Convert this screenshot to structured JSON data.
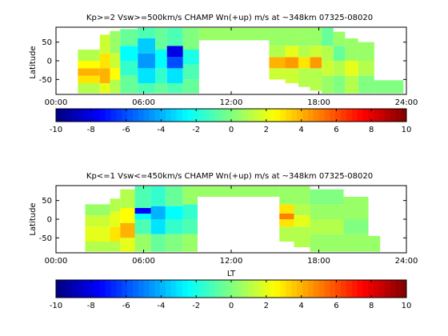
{
  "xticks": [
    "00:00",
    "06:00",
    "12:00",
    "18:00",
    "24:00"
  ],
  "cbar_ticks": [
    "-10",
    "-8",
    "-6",
    "-4",
    "-2",
    "0",
    "2",
    "4",
    "6",
    "8",
    "10"
  ],
  "chart_data": [
    {
      "type": "heatmap",
      "title": "Kp>=2 Vsw>=500km/s CHAMP Wn(+up) m/s at ~348km 07325-08020",
      "xlabel": "",
      "ylabel": "Latitude",
      "xlim": [
        0,
        24
      ],
      "ylim": [
        -90,
        90
      ],
      "yticks": [
        "-50",
        "0",
        "50"
      ],
      "colorbar": {
        "min": -10,
        "max": 10,
        "colormap": "jet"
      },
      "columns": [
        {
          "t0": 1.5,
          "t1": 3.0,
          "lat_min": -87,
          "lat_max": 30,
          "segments": [
            [
              -87,
              -60,
              1.0
            ],
            [
              -60,
              -40,
              3.0
            ],
            [
              -40,
              -20,
              4.0
            ],
            [
              -20,
              0,
              2.5
            ],
            [
              0,
              30,
              1.0
            ]
          ]
        },
        {
          "t0": 3.0,
          "t1": 3.7,
          "lat_min": -87,
          "lat_max": 70,
          "segments": [
            [
              -87,
              -60,
              2.0
            ],
            [
              -60,
              -20,
              4.0
            ],
            [
              -20,
              20,
              3.0
            ],
            [
              20,
              70,
              1.5
            ]
          ]
        },
        {
          "t0": 3.7,
          "t1": 4.4,
          "lat_min": -87,
          "lat_max": 80,
          "segments": [
            [
              -87,
              -50,
              1.0
            ],
            [
              -50,
              -20,
              2.5
            ],
            [
              -20,
              20,
              1.5
            ],
            [
              20,
              80,
              0.5
            ]
          ]
        },
        {
          "t0": 4.4,
          "t1": 5.6,
          "lat_min": -87,
          "lat_max": 85,
          "segments": [
            [
              -87,
              -40,
              -0.5
            ],
            [
              -40,
              0,
              -1.5
            ],
            [
              0,
              40,
              -2.5
            ],
            [
              40,
              85,
              -0.5
            ]
          ]
        },
        {
          "t0": 5.6,
          "t1": 6.8,
          "lat_min": -87,
          "lat_max": 88,
          "segments": [
            [
              -87,
              -60,
              -1.0
            ],
            [
              -60,
              -20,
              -3.0
            ],
            [
              -20,
              20,
              -4.5
            ],
            [
              20,
              60,
              -3.5
            ],
            [
              60,
              88,
              -1.0
            ]
          ]
        },
        {
          "t0": 6.8,
          "t1": 7.6,
          "lat_min": -87,
          "lat_max": 88,
          "segments": [
            [
              -87,
              -60,
              -0.5
            ],
            [
              -60,
              -20,
              -1.5
            ],
            [
              -20,
              30,
              -2.5
            ],
            [
              30,
              88,
              -0.5
            ]
          ]
        },
        {
          "t0": 7.6,
          "t1": 8.7,
          "lat_min": -87,
          "lat_max": 88,
          "segments": [
            [
              -87,
              -60,
              -1.0
            ],
            [
              -60,
              -20,
              -3.0
            ],
            [
              -20,
              10,
              -6.0
            ],
            [
              10,
              40,
              -8.0
            ],
            [
              40,
              88,
              -1.0
            ]
          ]
        },
        {
          "t0": 8.7,
          "t1": 9.8,
          "lat_min": -87,
          "lat_max": 88,
          "segments": [
            [
              -87,
              -50,
              -0.5
            ],
            [
              -50,
              -10,
              -1.0
            ],
            [
              -10,
              30,
              -2.0
            ],
            [
              30,
              88,
              0.0
            ]
          ]
        },
        {
          "t0": 9.8,
          "t1": 14.6,
          "lat_min": 55,
          "lat_max": 88,
          "segments": [
            [
              55,
              88,
              0.5
            ]
          ]
        },
        {
          "t0": 14.6,
          "t1": 15.7,
          "lat_min": -50,
          "lat_max": 88,
          "segments": [
            [
              -50,
              -20,
              1.5
            ],
            [
              -20,
              10,
              4.0
            ],
            [
              10,
              40,
              1.0
            ],
            [
              40,
              88,
              0.5
            ]
          ]
        },
        {
          "t0": 15.7,
          "t1": 16.6,
          "lat_min": -60,
          "lat_max": 88,
          "segments": [
            [
              -60,
              -20,
              1.5
            ],
            [
              -20,
              10,
              4.5
            ],
            [
              10,
              40,
              2.0
            ],
            [
              40,
              88,
              0.5
            ]
          ]
        },
        {
          "t0": 16.6,
          "t1": 17.4,
          "lat_min": -70,
          "lat_max": 88,
          "segments": [
            [
              -70,
              -20,
              1.0
            ],
            [
              -20,
              10,
              3.0
            ],
            [
              10,
              40,
              1.0
            ],
            [
              40,
              88,
              0.5
            ]
          ]
        },
        {
          "t0": 17.4,
          "t1": 18.2,
          "lat_min": -80,
          "lat_max": 88,
          "segments": [
            [
              -80,
              -20,
              1.0
            ],
            [
              -20,
              10,
              4.5
            ],
            [
              10,
              40,
              1.5
            ],
            [
              40,
              88,
              0.5
            ]
          ]
        },
        {
          "t0": 18.2,
          "t1": 19.0,
          "lat_min": -87,
          "lat_max": 88,
          "segments": [
            [
              -87,
              -40,
              0.5
            ],
            [
              -40,
              0,
              1.5
            ],
            [
              0,
              40,
              1.0
            ],
            [
              40,
              88,
              -0.5
            ]
          ]
        },
        {
          "t0": 19.0,
          "t1": 19.8,
          "lat_min": -87,
          "lat_max": 78,
          "segments": [
            [
              -87,
              -40,
              0.0
            ],
            [
              -40,
              0,
              1.0
            ],
            [
              0,
              40,
              -0.5
            ],
            [
              40,
              78,
              0.5
            ]
          ]
        },
        {
          "t0": 19.8,
          "t1": 20.7,
          "lat_min": -87,
          "lat_max": 60,
          "segments": [
            [
              -87,
              -40,
              1.0
            ],
            [
              -40,
              0,
              2.0
            ],
            [
              0,
              60,
              0.5
            ]
          ]
        },
        {
          "t0": 20.7,
          "t1": 21.8,
          "lat_min": -87,
          "lat_max": 50,
          "segments": [
            [
              -87,
              -40,
              0.0
            ],
            [
              -40,
              0,
              1.0
            ],
            [
              0,
              50,
              0.5
            ]
          ]
        },
        {
          "t0": 21.8,
          "t1": 23.8,
          "lat_min": -87,
          "lat_max": -52,
          "segments": [
            [
              -87,
              -52,
              0.0
            ]
          ]
        }
      ]
    },
    {
      "type": "heatmap",
      "title": "Kp<=1 Vsw<=450km/s CHAMP Wn(+up) m/s at ~348km 07325-08020",
      "xlabel": "LT",
      "ylabel": "Latitude",
      "xlim": [
        0,
        24
      ],
      "ylim": [
        -90,
        90
      ],
      "yticks": [
        "-50",
        "0",
        "50"
      ],
      "colorbar": {
        "min": -10,
        "max": 10,
        "colormap": "jet"
      },
      "columns": [
        {
          "t0": 2.0,
          "t1": 3.7,
          "lat_min": -87,
          "lat_max": 40,
          "segments": [
            [
              -87,
              -60,
              1.0
            ],
            [
              -60,
              -20,
              2.0
            ],
            [
              -20,
              10,
              1.5
            ],
            [
              10,
              40,
              0.5
            ]
          ]
        },
        {
          "t0": 3.7,
          "t1": 4.4,
          "lat_min": -87,
          "lat_max": 55,
          "segments": [
            [
              -87,
              -60,
              1.0
            ],
            [
              -60,
              -20,
              3.0
            ],
            [
              -20,
              20,
              2.0
            ],
            [
              20,
              55,
              1.0
            ]
          ]
        },
        {
          "t0": 4.4,
          "t1": 5.4,
          "lat_min": -87,
          "lat_max": 80,
          "segments": [
            [
              -87,
              -50,
              2.0
            ],
            [
              -50,
              -10,
              4.0
            ],
            [
              -10,
              30,
              2.5
            ],
            [
              30,
              80,
              1.0
            ]
          ]
        },
        {
          "t0": 5.4,
          "t1": 6.5,
          "lat_min": -87,
          "lat_max": 88,
          "segments": [
            [
              -87,
              -40,
              0.5
            ],
            [
              -40,
              0,
              -1.0
            ],
            [
              0,
              15,
              -2.5
            ],
            [
              15,
              30,
              -7.5
            ],
            [
              30,
              88,
              -1.0
            ]
          ]
        },
        {
          "t0": 6.5,
          "t1": 7.5,
          "lat_min": -87,
          "lat_max": 88,
          "segments": [
            [
              -87,
              -40,
              -0.5
            ],
            [
              -40,
              0,
              -3.0
            ],
            [
              0,
              35,
              -4.0
            ],
            [
              35,
              88,
              -1.5
            ]
          ]
        },
        {
          "t0": 7.5,
          "t1": 8.7,
          "lat_min": -87,
          "lat_max": 88,
          "segments": [
            [
              -87,
              -40,
              0.0
            ],
            [
              -40,
              0,
              -1.5
            ],
            [
              0,
              35,
              -2.5
            ],
            [
              35,
              88,
              -0.5
            ]
          ]
        },
        {
          "t0": 8.7,
          "t1": 9.7,
          "lat_min": -87,
          "lat_max": 88,
          "segments": [
            [
              -87,
              -40,
              0.5
            ],
            [
              -40,
              0,
              -1.0
            ],
            [
              0,
              40,
              -1.5
            ],
            [
              40,
              88,
              0.5
            ]
          ]
        },
        {
          "t0": 9.7,
          "t1": 15.3,
          "lat_min": 60,
          "lat_max": 88,
          "segments": [
            [
              60,
              88,
              0.5
            ]
          ]
        },
        {
          "t0": 15.3,
          "t1": 16.3,
          "lat_min": -60,
          "lat_max": 88,
          "segments": [
            [
              -60,
              -20,
              1.0
            ],
            [
              -20,
              0,
              3.0
            ],
            [
              0,
              15,
              5.0
            ],
            [
              15,
              40,
              3.0
            ],
            [
              40,
              88,
              0.5
            ]
          ]
        },
        {
          "t0": 16.3,
          "t1": 17.4,
          "lat_min": -75,
          "lat_max": 88,
          "segments": [
            [
              -75,
              -20,
              1.0
            ],
            [
              -20,
              10,
              2.0
            ],
            [
              10,
              40,
              1.0
            ],
            [
              40,
              88,
              0.5
            ]
          ]
        },
        {
          "t0": 17.4,
          "t1": 19.7,
          "lat_min": -87,
          "lat_max": 80,
          "segments": [
            [
              -87,
              -40,
              0.5
            ],
            [
              -40,
              0,
              1.0
            ],
            [
              0,
              40,
              0.5
            ],
            [
              40,
              80,
              0.0
            ]
          ]
        },
        {
          "t0": 19.7,
          "t1": 21.4,
          "lat_min": -87,
          "lat_max": 60,
          "segments": [
            [
              -87,
              -40,
              0.5
            ],
            [
              -40,
              0,
              0.0
            ],
            [
              0,
              60,
              0.5
            ]
          ]
        },
        {
          "t0": 21.4,
          "t1": 22.2,
          "lat_min": -87,
          "lat_max": -45,
          "segments": [
            [
              -87,
              -45,
              0.5
            ]
          ]
        }
      ]
    }
  ]
}
